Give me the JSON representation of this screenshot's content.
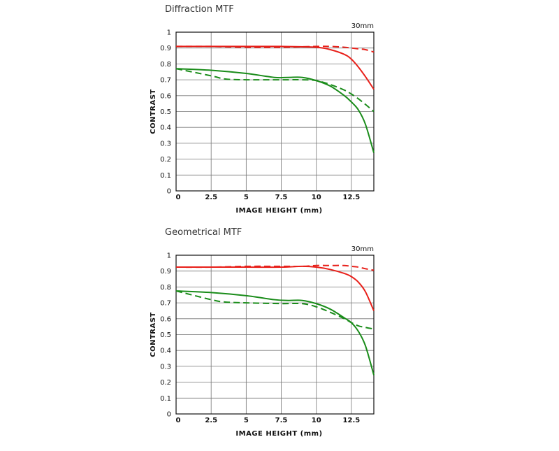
{
  "chart_data": [
    {
      "type": "line",
      "title": "Diffraction MTF",
      "annotation": "30mm",
      "xlabel": "IMAGE HEIGHT (mm)",
      "ylabel": "CONTRAST",
      "xlim": [
        0,
        14.1
      ],
      "ylim": [
        0,
        1
      ],
      "x_ticks": [
        "0",
        "2.5",
        "5",
        "7.5",
        "10",
        "12.5"
      ],
      "x_tick_values": [
        0,
        2.5,
        5,
        7.5,
        10,
        12.5
      ],
      "y_ticks": [
        "0",
        "0.1",
        "0.2",
        "0.3",
        "0.4",
        "0.5",
        "0.6",
        "0.7",
        "0.8",
        "0.9",
        "1"
      ],
      "y_tick_values": [
        0,
        0.1,
        0.2,
        0.3,
        0.4,
        0.5,
        0.6,
        0.7,
        0.8,
        0.9,
        1
      ],
      "grid": true,
      "series": [
        {
          "color": "#e8201a",
          "dash": false,
          "points": [
            [
              0,
              0.91
            ],
            [
              2.5,
              0.91
            ],
            [
              5,
              0.91
            ],
            [
              7.5,
              0.91
            ],
            [
              10,
              0.905
            ],
            [
              11,
              0.89
            ],
            [
              12,
              0.86
            ],
            [
              12.5,
              0.83
            ],
            [
              13,
              0.78
            ],
            [
              13.5,
              0.72
            ],
            [
              14.1,
              0.64
            ]
          ]
        },
        {
          "color": "#e8201a",
          "dash": true,
          "points": [
            [
              0,
              0.91
            ],
            [
              2.5,
              0.91
            ],
            [
              5,
              0.905
            ],
            [
              7.5,
              0.905
            ],
            [
              10,
              0.91
            ],
            [
              11,
              0.91
            ],
            [
              12,
              0.905
            ],
            [
              12.5,
              0.9
            ],
            [
              13,
              0.895
            ],
            [
              13.5,
              0.89
            ],
            [
              14.1,
              0.875
            ]
          ]
        },
        {
          "color": "#1a8c1a",
          "dash": false,
          "points": [
            [
              0,
              0.77
            ],
            [
              2.5,
              0.76
            ],
            [
              5,
              0.74
            ],
            [
              7,
              0.715
            ],
            [
              8,
              0.715
            ],
            [
              9,
              0.715
            ],
            [
              10,
              0.695
            ],
            [
              11,
              0.66
            ],
            [
              12,
              0.6
            ],
            [
              12.5,
              0.56
            ],
            [
              13,
              0.51
            ],
            [
              13.5,
              0.42
            ],
            [
              14.1,
              0.24
            ]
          ]
        },
        {
          "color": "#1a8c1a",
          "dash": true,
          "points": [
            [
              0,
              0.77
            ],
            [
              2.5,
              0.725
            ],
            [
              3.5,
              0.705
            ],
            [
              5,
              0.7
            ],
            [
              7.5,
              0.7
            ],
            [
              9,
              0.7
            ],
            [
              10,
              0.695
            ],
            [
              11,
              0.67
            ],
            [
              12,
              0.635
            ],
            [
              12.5,
              0.61
            ],
            [
              13,
              0.58
            ],
            [
              13.5,
              0.545
            ],
            [
              14.1,
              0.5
            ]
          ]
        }
      ]
    },
    {
      "type": "line",
      "title": "Geometrical MTF",
      "annotation": "30mm",
      "xlabel": "IMAGE HEIGHT (mm)",
      "ylabel": "CONTRAST",
      "xlim": [
        0,
        14.1
      ],
      "ylim": [
        0,
        1
      ],
      "x_ticks": [
        "0",
        "2.5",
        "5",
        "7.5",
        "10",
        "12.5"
      ],
      "x_tick_values": [
        0,
        2.5,
        5,
        7.5,
        10,
        12.5
      ],
      "y_ticks": [
        "0",
        "0.1",
        "0.2",
        "0.3",
        "0.4",
        "0.5",
        "0.6",
        "0.7",
        "0.8",
        "0.9",
        "1"
      ],
      "y_tick_values": [
        0,
        0.1,
        0.2,
        0.3,
        0.4,
        0.5,
        0.6,
        0.7,
        0.8,
        0.9,
        1
      ],
      "grid": true,
      "series": [
        {
          "color": "#e8201a",
          "dash": false,
          "points": [
            [
              0,
              0.925
            ],
            [
              2.5,
              0.925
            ],
            [
              5,
              0.925
            ],
            [
              7.5,
              0.925
            ],
            [
              9,
              0.93
            ],
            [
              10,
              0.925
            ],
            [
              11,
              0.91
            ],
            [
              12,
              0.885
            ],
            [
              12.5,
              0.865
            ],
            [
              13,
              0.83
            ],
            [
              13.5,
              0.77
            ],
            [
              14.1,
              0.65
            ]
          ]
        },
        {
          "color": "#e8201a",
          "dash": true,
          "points": [
            [
              0,
              0.925
            ],
            [
              2.5,
              0.925
            ],
            [
              5,
              0.93
            ],
            [
              7.5,
              0.93
            ],
            [
              9,
              0.93
            ],
            [
              10,
              0.935
            ],
            [
              11,
              0.935
            ],
            [
              12,
              0.935
            ],
            [
              12.5,
              0.93
            ],
            [
              13,
              0.925
            ],
            [
              13.5,
              0.915
            ],
            [
              14.1,
              0.905
            ]
          ]
        },
        {
          "color": "#1a8c1a",
          "dash": false,
          "points": [
            [
              0,
              0.775
            ],
            [
              2.5,
              0.765
            ],
            [
              5,
              0.745
            ],
            [
              7,
              0.72
            ],
            [
              8,
              0.715
            ],
            [
              9,
              0.715
            ],
            [
              10,
              0.695
            ],
            [
              11,
              0.66
            ],
            [
              12,
              0.605
            ],
            [
              12.5,
              0.575
            ],
            [
              13,
              0.52
            ],
            [
              13.5,
              0.43
            ],
            [
              14.1,
              0.245
            ]
          ]
        },
        {
          "color": "#1a8c1a",
          "dash": true,
          "points": [
            [
              0,
              0.775
            ],
            [
              2.5,
              0.72
            ],
            [
              3.5,
              0.705
            ],
            [
              5,
              0.7
            ],
            [
              7.5,
              0.695
            ],
            [
              9,
              0.695
            ],
            [
              10,
              0.675
            ],
            [
              11,
              0.64
            ],
            [
              12,
              0.6
            ],
            [
              12.5,
              0.575
            ],
            [
              13,
              0.555
            ],
            [
              13.5,
              0.545
            ],
            [
              14.1,
              0.535
            ]
          ]
        }
      ]
    }
  ]
}
